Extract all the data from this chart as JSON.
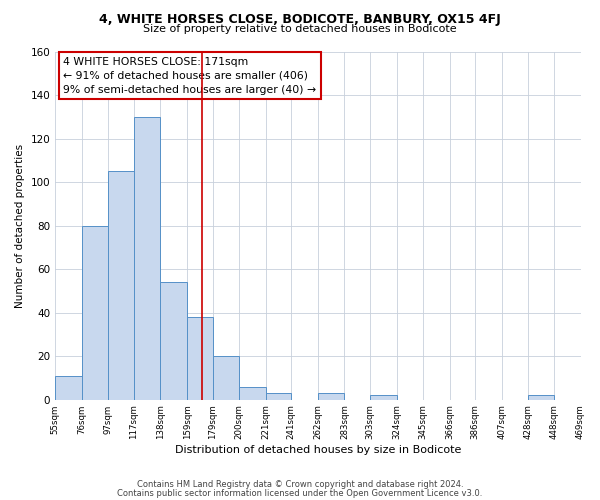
{
  "title": "4, WHITE HORSES CLOSE, BODICOTE, BANBURY, OX15 4FJ",
  "subtitle": "Size of property relative to detached houses in Bodicote",
  "xlabel": "Distribution of detached houses by size in Bodicote",
  "ylabel": "Number of detached properties",
  "bin_labels": [
    "55sqm",
    "76sqm",
    "97sqm",
    "117sqm",
    "138sqm",
    "159sqm",
    "179sqm",
    "200sqm",
    "221sqm",
    "241sqm",
    "262sqm",
    "283sqm",
    "303sqm",
    "324sqm",
    "345sqm",
    "366sqm",
    "386sqm",
    "407sqm",
    "428sqm",
    "448sqm",
    "469sqm"
  ],
  "bin_edges": [
    55,
    76,
    97,
    117,
    138,
    159,
    179,
    200,
    221,
    241,
    262,
    283,
    303,
    324,
    345,
    366,
    386,
    407,
    428,
    448,
    469
  ],
  "bar_heights": [
    11,
    80,
    105,
    130,
    54,
    38,
    20,
    6,
    3,
    0,
    3,
    0,
    2,
    0,
    0,
    0,
    0,
    0,
    2,
    0
  ],
  "bar_color": "#c8d8ee",
  "bar_edge_color": "#5590c8",
  "red_line_x": 171,
  "ylim": [
    0,
    160
  ],
  "yticks": [
    0,
    20,
    40,
    60,
    80,
    100,
    120,
    140,
    160
  ],
  "annotation_line1": "4 WHITE HORSES CLOSE: 171sqm",
  "annotation_line2": "← 91% of detached houses are smaller (406)",
  "annotation_line3": "9% of semi-detached houses are larger (40) →",
  "annotation_box_color": "#ffffff",
  "annotation_box_edge_color": "#cc0000",
  "footer_line1": "Contains HM Land Registry data © Crown copyright and database right 2024.",
  "footer_line2": "Contains public sector information licensed under the Open Government Licence v3.0.",
  "background_color": "#ffffff",
  "grid_color": "#c8d0dc"
}
